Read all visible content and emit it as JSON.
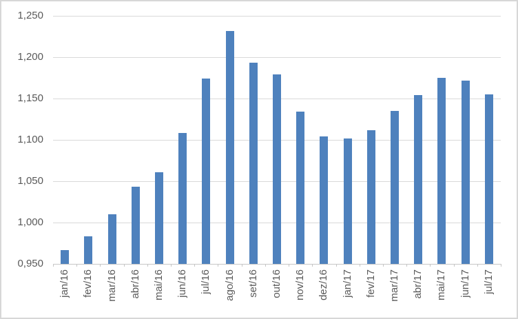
{
  "chart_data": {
    "type": "bar",
    "title": "",
    "xlabel": "",
    "ylabel": "",
    "categories": [
      "jan/16",
      "fev/16",
      "mar/16",
      "abr/16",
      "mai/16",
      "jun/16",
      "jul/16",
      "ago/16",
      "set/16",
      "out/16",
      "nov/16",
      "dez/16",
      "jan/17",
      "fev/17",
      "mar/17",
      "abr/17",
      "mai/17",
      "jun/17",
      "jul/17"
    ],
    "values": [
      0.967,
      0.983,
      1.01,
      1.043,
      1.061,
      1.108,
      1.174,
      1.232,
      1.193,
      1.179,
      1.134,
      1.104,
      1.102,
      1.112,
      1.135,
      1.154,
      1.175,
      1.172,
      1.155
    ],
    "ylim": [
      0.95,
      1.25
    ],
    "y_tick_step": 0.05,
    "y_tick_labels": [
      "0,950",
      "1,000",
      "1,050",
      "1,100",
      "1,150",
      "1,200",
      "1,250"
    ],
    "decimal_separator": "comma",
    "grid": true,
    "legend_position": "none",
    "x_label_rotation_deg": 90,
    "colors": {
      "bar": "#4e81bd",
      "gridline": "#d9d9d9",
      "axis_line": "#c6c6c6",
      "tick_label": "#595959",
      "frame_border": "#d7d7d7",
      "background": "#ffffff"
    }
  }
}
